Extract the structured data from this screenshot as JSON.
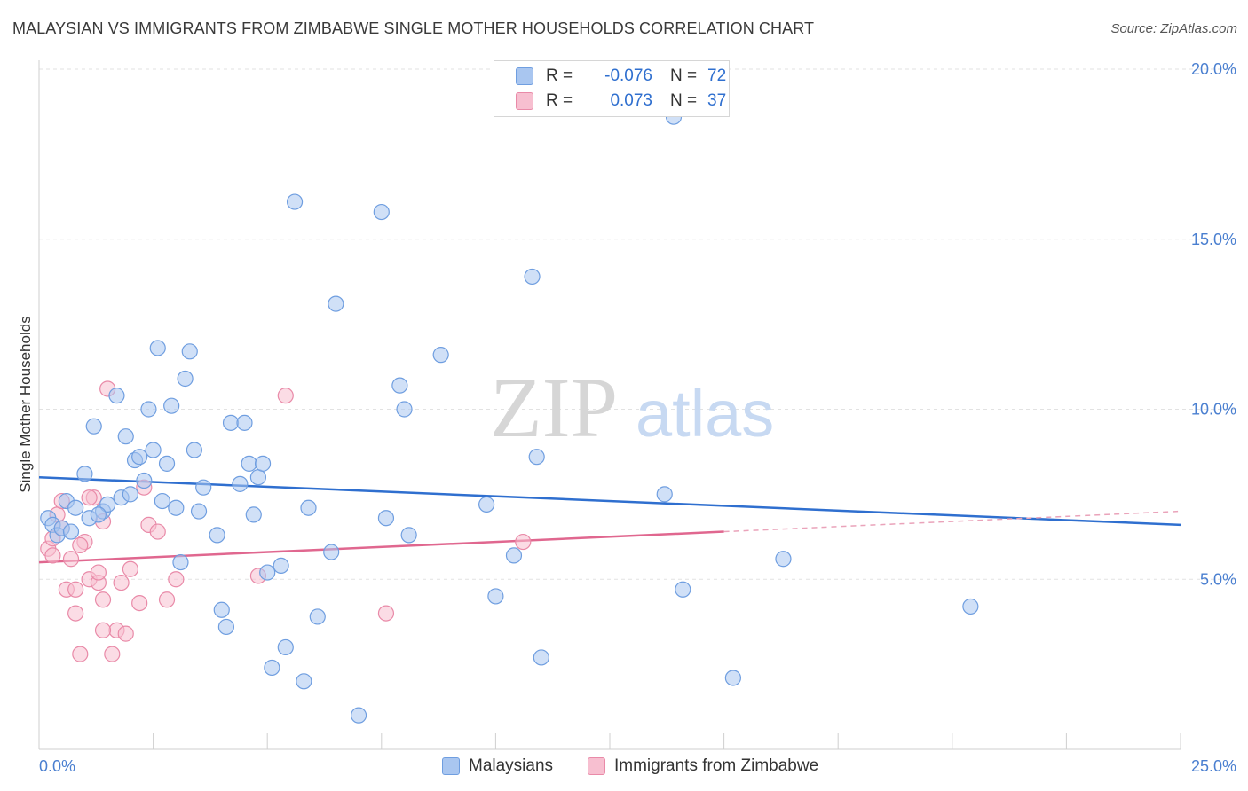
{
  "title": "MALAYSIAN VS IMMIGRANTS FROM ZIMBABWE SINGLE MOTHER HOUSEHOLDS CORRELATION CHART",
  "source": "Source: ZipAtlas.com",
  "watermark": {
    "zip": "ZIP",
    "atlas": "atlas"
  },
  "legend": {
    "rows": [
      {
        "r_label": "R =",
        "r_value": "-0.076",
        "n_label": "N =",
        "n_value": "72",
        "color": "#a9c6f0",
        "border": "#6f9ee0"
      },
      {
        "r_label": "R =",
        "r_value": "0.073",
        "n_label": "N =",
        "n_value": "37",
        "color": "#f7bfd0",
        "border": "#e98aa8"
      }
    ]
  },
  "bottom_legend": [
    {
      "label": "Malaysians",
      "color": "#a9c6f0",
      "border": "#6f9ee0"
    },
    {
      "label": "Immigrants from Zimbabwe",
      "color": "#f7bfd0",
      "border": "#e98aa8"
    }
  ],
  "chart_data": {
    "type": "scatter",
    "title": "MALAYSIAN VS IMMIGRANTS FROM ZIMBABWE SINGLE MOTHER HOUSEHOLDS CORRELATION CHART",
    "xlabel": "",
    "ylabel": "Single Mother Households",
    "xlim": [
      0,
      25
    ],
    "ylim": [
      0,
      20
    ],
    "x_tick_labels": [
      "0.0%",
      "25.0%"
    ],
    "y_ticks": [
      5,
      10,
      15,
      20
    ],
    "y_tick_labels": [
      "5.0%",
      "10.0%",
      "15.0%",
      "20.0%"
    ],
    "grid": true,
    "legend_placement": "top-center",
    "series": [
      {
        "name": "Malaysians",
        "color": "#6f9ee0",
        "fill": "#a9c6f0",
        "trend": {
          "x": [
            0,
            25
          ],
          "y": [
            8.0,
            6.6
          ],
          "style": "solid"
        },
        "points": [
          [
            0.2,
            6.8
          ],
          [
            0.3,
            6.6
          ],
          [
            0.4,
            6.3
          ],
          [
            0.5,
            6.5
          ],
          [
            0.6,
            7.3
          ],
          [
            0.8,
            7.1
          ],
          [
            1.0,
            8.1
          ],
          [
            1.1,
            6.8
          ],
          [
            1.2,
            9.5
          ],
          [
            1.4,
            7.0
          ],
          [
            1.5,
            7.2
          ],
          [
            1.7,
            10.4
          ],
          [
            1.8,
            7.4
          ],
          [
            1.9,
            9.2
          ],
          [
            2.0,
            7.5
          ],
          [
            2.1,
            8.5
          ],
          [
            2.3,
            7.9
          ],
          [
            2.4,
            10.0
          ],
          [
            2.5,
            8.8
          ],
          [
            2.6,
            11.8
          ],
          [
            2.7,
            7.3
          ],
          [
            2.8,
            8.4
          ],
          [
            2.9,
            10.1
          ],
          [
            3.2,
            10.9
          ],
          [
            3.3,
            11.7
          ],
          [
            3.4,
            8.8
          ],
          [
            3.5,
            7.0
          ],
          [
            3.6,
            7.7
          ],
          [
            3.9,
            6.3
          ],
          [
            4.0,
            4.1
          ],
          [
            4.1,
            3.6
          ],
          [
            4.2,
            9.6
          ],
          [
            4.4,
            7.8
          ],
          [
            4.5,
            9.6
          ],
          [
            4.6,
            8.4
          ],
          [
            4.8,
            8.0
          ],
          [
            4.9,
            8.4
          ],
          [
            5.0,
            5.2
          ],
          [
            5.1,
            2.4
          ],
          [
            5.3,
            5.4
          ],
          [
            5.4,
            3.0
          ],
          [
            5.6,
            16.1
          ],
          [
            5.8,
            2.0
          ],
          [
            5.9,
            7.1
          ],
          [
            6.1,
            3.9
          ],
          [
            6.4,
            5.8
          ],
          [
            6.5,
            13.1
          ],
          [
            7.0,
            1.0
          ],
          [
            7.5,
            15.8
          ],
          [
            7.6,
            6.8
          ],
          [
            7.9,
            10.7
          ],
          [
            8.0,
            10.0
          ],
          [
            8.1,
            6.3
          ],
          [
            8.8,
            11.6
          ],
          [
            9.8,
            7.2
          ],
          [
            10.0,
            4.5
          ],
          [
            10.4,
            5.7
          ],
          [
            10.8,
            13.9
          ],
          [
            10.9,
            8.6
          ],
          [
            11.0,
            2.7
          ],
          [
            13.7,
            7.5
          ],
          [
            13.9,
            18.6
          ],
          [
            14.1,
            4.7
          ],
          [
            15.2,
            2.1
          ],
          [
            16.3,
            5.6
          ],
          [
            20.4,
            4.2
          ],
          [
            1.3,
            6.9
          ],
          [
            2.2,
            8.6
          ],
          [
            3.0,
            7.1
          ],
          [
            0.7,
            6.4
          ],
          [
            3.1,
            5.5
          ],
          [
            4.7,
            6.9
          ]
        ]
      },
      {
        "name": "Immigrants from Zimbabwe",
        "color": "#e98aa8",
        "fill": "#f7bfd0",
        "trend": {
          "x": [
            0,
            15
          ],
          "y": [
            5.5,
            6.4
          ],
          "style": "solid"
        },
        "trend_extension": {
          "x": [
            15,
            25
          ],
          "y": [
            6.4,
            7.0
          ],
          "style": "dashed"
        },
        "points": [
          [
            0.2,
            5.9
          ],
          [
            0.3,
            6.2
          ],
          [
            0.3,
            5.7
          ],
          [
            0.4,
            6.9
          ],
          [
            0.5,
            7.3
          ],
          [
            0.5,
            6.5
          ],
          [
            0.6,
            4.7
          ],
          [
            0.7,
            5.6
          ],
          [
            0.8,
            4.7
          ],
          [
            0.8,
            4.0
          ],
          [
            0.9,
            2.8
          ],
          [
            1.0,
            6.1
          ],
          [
            1.1,
            5.0
          ],
          [
            1.2,
            7.4
          ],
          [
            1.3,
            4.9
          ],
          [
            1.3,
            5.2
          ],
          [
            1.4,
            6.7
          ],
          [
            1.4,
            4.4
          ],
          [
            1.5,
            10.6
          ],
          [
            1.6,
            2.8
          ],
          [
            1.7,
            3.5
          ],
          [
            1.8,
            4.9
          ],
          [
            1.9,
            3.4
          ],
          [
            2.0,
            5.3
          ],
          [
            2.2,
            4.3
          ],
          [
            2.3,
            7.7
          ],
          [
            2.4,
            6.6
          ],
          [
            2.6,
            6.4
          ],
          [
            2.8,
            4.4
          ],
          [
            3.0,
            5.0
          ],
          [
            4.8,
            5.1
          ],
          [
            5.4,
            10.4
          ],
          [
            7.6,
            4.0
          ],
          [
            10.6,
            6.1
          ],
          [
            1.1,
            7.4
          ],
          [
            0.9,
            6.0
          ],
          [
            1.4,
            3.5
          ]
        ]
      }
    ]
  }
}
